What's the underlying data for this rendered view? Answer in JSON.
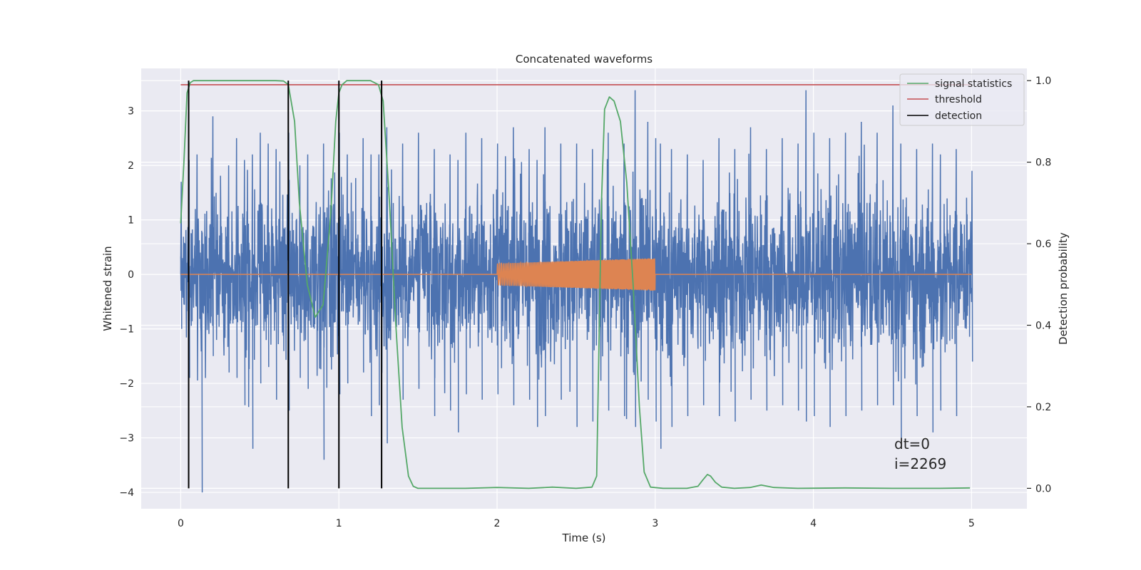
{
  "chart_data": {
    "type": "line",
    "title": "Concatenated waveforms",
    "xlabel": "Time (s)",
    "ylabel": "Whitened strain",
    "ylabel_right": "Detection probability",
    "xlim": [
      -0.25,
      5.35
    ],
    "ylim": [
      -4.3,
      3.78
    ],
    "ylim_right": [
      -0.05,
      1.03
    ],
    "xticks": [
      0,
      1,
      2,
      3,
      4,
      5
    ],
    "yticks": [
      -4,
      -3,
      -2,
      -1,
      0,
      1,
      2,
      3
    ],
    "yticks_right": [
      0.0,
      0.2,
      0.4,
      0.6,
      0.8,
      1.0
    ],
    "grid": true,
    "legend_position": "top-right",
    "legend": [
      "signal statistics",
      "threshold",
      "detection"
    ],
    "colors": {
      "noise": "#4c72b0",
      "injection": "#dd8452",
      "signal_statistics": "#55a868",
      "threshold": "#c44e52",
      "detection": "#000000",
      "axes_bg": "#eaeaf2",
      "grid": "#ffffff"
    },
    "series": [
      {
        "name": "noise",
        "axis": "left",
        "x_range": [
          0,
          5
        ],
        "envelope": [
          [
            0.0,
            1.7,
            -1.0
          ],
          [
            0.05,
            2.1,
            -1.9
          ],
          [
            0.1,
            2.2,
            -1.8
          ],
          [
            0.13,
            0.8,
            -4.0
          ],
          [
            0.2,
            2.9,
            -1.5
          ],
          [
            0.3,
            2.0,
            -1.8
          ],
          [
            0.35,
            2.5,
            -1.9
          ],
          [
            0.4,
            2.1,
            -2.4
          ],
          [
            0.45,
            2.2,
            -3.2
          ],
          [
            0.5,
            2.6,
            -2.0
          ],
          [
            0.55,
            2.4,
            -1.7
          ],
          [
            0.6,
            2.3,
            -2.3
          ],
          [
            0.68,
            2.6,
            -2.5
          ],
          [
            0.75,
            2.0,
            -1.9
          ],
          [
            0.8,
            2.2,
            -2.1
          ],
          [
            0.9,
            2.4,
            -3.4
          ],
          [
            1.0,
            2.6,
            -2.2
          ],
          [
            1.05,
            2.2,
            -2.0
          ],
          [
            1.15,
            2.5,
            -1.8
          ],
          [
            1.2,
            2.2,
            -2.6
          ],
          [
            1.25,
            2.2,
            -2.4
          ],
          [
            1.3,
            2.7,
            -3.1
          ],
          [
            1.4,
            2.4,
            -2.3
          ],
          [
            1.5,
            2.6,
            -2.1
          ],
          [
            1.6,
            2.3,
            -2.6
          ],
          [
            1.7,
            2.2,
            -2.5
          ],
          [
            1.75,
            2.1,
            -2.9
          ],
          [
            1.8,
            2.6,
            -2.2
          ],
          [
            1.9,
            2.5,
            -2.3
          ],
          [
            2.0,
            2.4,
            -2.2
          ],
          [
            2.1,
            2.7,
            -2.4
          ],
          [
            2.2,
            2.3,
            -2.3
          ],
          [
            2.25,
            2.1,
            -2.8
          ],
          [
            2.3,
            2.7,
            -2.6
          ],
          [
            2.4,
            2.4,
            -2.3
          ],
          [
            2.5,
            2.4,
            -2.8
          ],
          [
            2.6,
            2.3,
            -2.7
          ],
          [
            2.7,
            2.6,
            -2.5
          ],
          [
            2.8,
            2.4,
            -2.6
          ],
          [
            2.87,
            3.38,
            -2.8
          ],
          [
            2.95,
            2.8,
            -2.3
          ],
          [
            3.0,
            2.5,
            -2.7
          ],
          [
            3.03,
            2.4,
            -3.2
          ],
          [
            3.1,
            2.3,
            -2.8
          ],
          [
            3.2,
            2.2,
            -2.6
          ],
          [
            3.3,
            2.1,
            -2.4
          ],
          [
            3.4,
            2.5,
            -2.6
          ],
          [
            3.5,
            2.3,
            -2.7
          ],
          [
            3.6,
            2.7,
            -2.3
          ],
          [
            3.7,
            2.3,
            -2.5
          ],
          [
            3.8,
            2.5,
            -2.4
          ],
          [
            3.9,
            2.4,
            -2.5
          ],
          [
            3.95,
            3.38,
            -2.7
          ],
          [
            4.0,
            2.6,
            -2.6
          ],
          [
            4.1,
            2.5,
            -2.8
          ],
          [
            4.2,
            2.6,
            -2.6
          ],
          [
            4.3,
            2.8,
            -2.5
          ],
          [
            4.4,
            2.6,
            -2.4
          ],
          [
            4.5,
            3.1,
            -2.4
          ],
          [
            4.55,
            2.4,
            -3.0
          ],
          [
            4.65,
            2.3,
            -2.6
          ],
          [
            4.75,
            2.4,
            -2.9
          ],
          [
            4.8,
            2.2,
            -2.5
          ],
          [
            4.9,
            2.3,
            -2.6
          ],
          [
            5.0,
            1.9,
            -1.6
          ]
        ]
      },
      {
        "name": "injection",
        "axis": "left",
        "x_range": [
          2,
          3
        ],
        "amplitude_start": 0.2,
        "amplitude_end": 0.3
      },
      {
        "name": "signal statistics",
        "axis": "right",
        "x": [
          0.0,
          0.02,
          0.04,
          0.06,
          0.08,
          0.1,
          0.2,
          0.4,
          0.6,
          0.65,
          0.68,
          0.72,
          0.75,
          0.8,
          0.85,
          0.9,
          0.95,
          0.98,
          1.0,
          1.02,
          1.05,
          1.1,
          1.2,
          1.25,
          1.28,
          1.32,
          1.36,
          1.4,
          1.44,
          1.47,
          1.5,
          1.6,
          1.8,
          2.0,
          2.2,
          2.35,
          2.5,
          2.6,
          2.63,
          2.66,
          2.68,
          2.71,
          2.74,
          2.78,
          2.82,
          2.86,
          2.9,
          2.93,
          2.97,
          3.05,
          3.2,
          3.27,
          3.3,
          3.33,
          3.35,
          3.38,
          3.42,
          3.5,
          3.6,
          3.67,
          3.75,
          3.9,
          4.2,
          4.5,
          4.8,
          4.99
        ],
        "y": [
          0.65,
          0.8,
          0.97,
          0.995,
          1.0,
          1.0,
          1.0,
          1.0,
          1.0,
          0.999,
          0.99,
          0.9,
          0.7,
          0.5,
          0.42,
          0.45,
          0.68,
          0.9,
          0.97,
          0.99,
          1.0,
          1.0,
          1.0,
          0.99,
          0.95,
          0.7,
          0.4,
          0.15,
          0.03,
          0.005,
          0.0,
          0.0,
          0.0,
          0.002,
          0.0,
          0.003,
          0.0,
          0.003,
          0.03,
          0.7,
          0.93,
          0.96,
          0.95,
          0.9,
          0.75,
          0.5,
          0.2,
          0.04,
          0.003,
          0.0,
          0.0,
          0.005,
          0.02,
          0.034,
          0.03,
          0.015,
          0.003,
          0.0,
          0.002,
          0.008,
          0.002,
          0.0,
          0.001,
          0.0,
          0.0,
          0.001
        ]
      },
      {
        "name": "threshold",
        "axis": "right",
        "x": [
          0,
          5
        ],
        "y": [
          0.99,
          0.99
        ]
      },
      {
        "name": "detection",
        "axis": "right",
        "x": [
          0.05,
          0.68,
          1.0,
          1.27
        ],
        "y_range": [
          0.0,
          1.0
        ]
      }
    ],
    "annotations": [
      "dt=0",
      "i=2269"
    ]
  }
}
